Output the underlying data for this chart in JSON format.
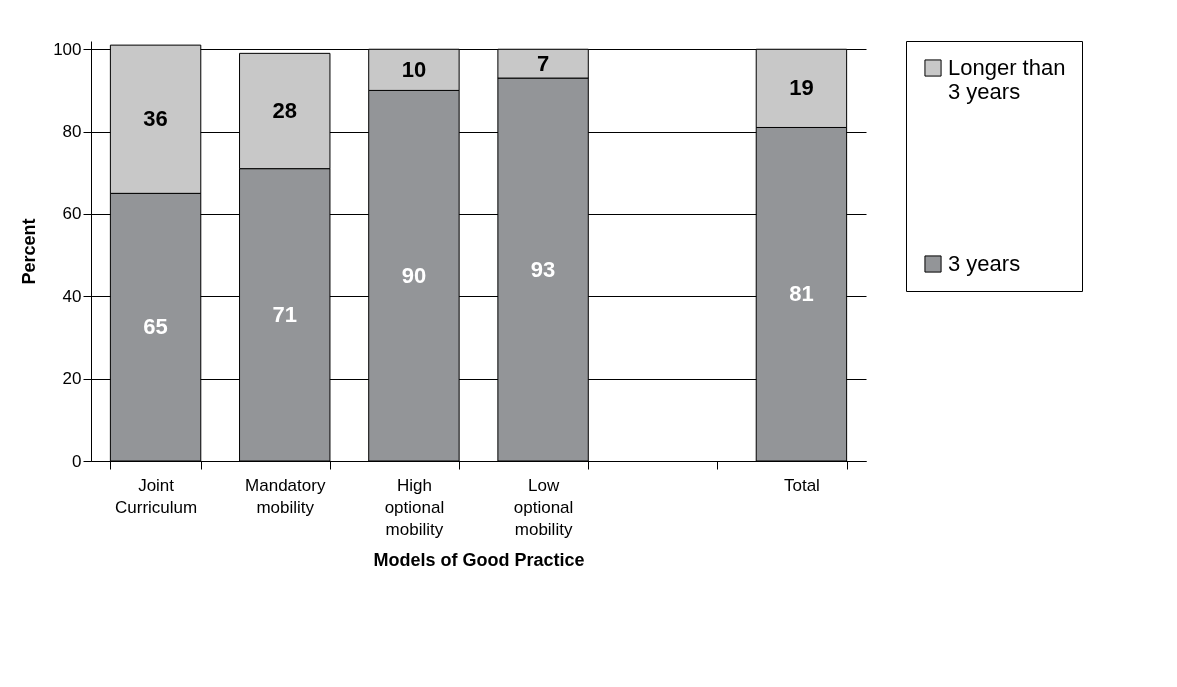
{
  "chart_data": {
    "type": "bar",
    "stacked": true,
    "xlabel": "Models of Good Practice",
    "ylabel": "Percent",
    "categories": [
      "Joint Curriculum",
      "Mandatory mobility",
      "High optional mobility",
      "Low optional mobility",
      null,
      "Total"
    ],
    "series": [
      {
        "name": "3 years",
        "color": "#939598",
        "values": [
          65,
          71,
          90,
          93,
          null,
          81
        ]
      },
      {
        "name": "Longer than 3 years",
        "color": "#c8c8c8",
        "values": [
          36,
          28,
          10,
          7,
          null,
          19
        ]
      }
    ],
    "ylim": [
      0,
      102
    ],
    "yticks": [
      0,
      20,
      40,
      60,
      80,
      100
    ],
    "grid": "y",
    "legend": "right",
    "data_labels": true
  }
}
